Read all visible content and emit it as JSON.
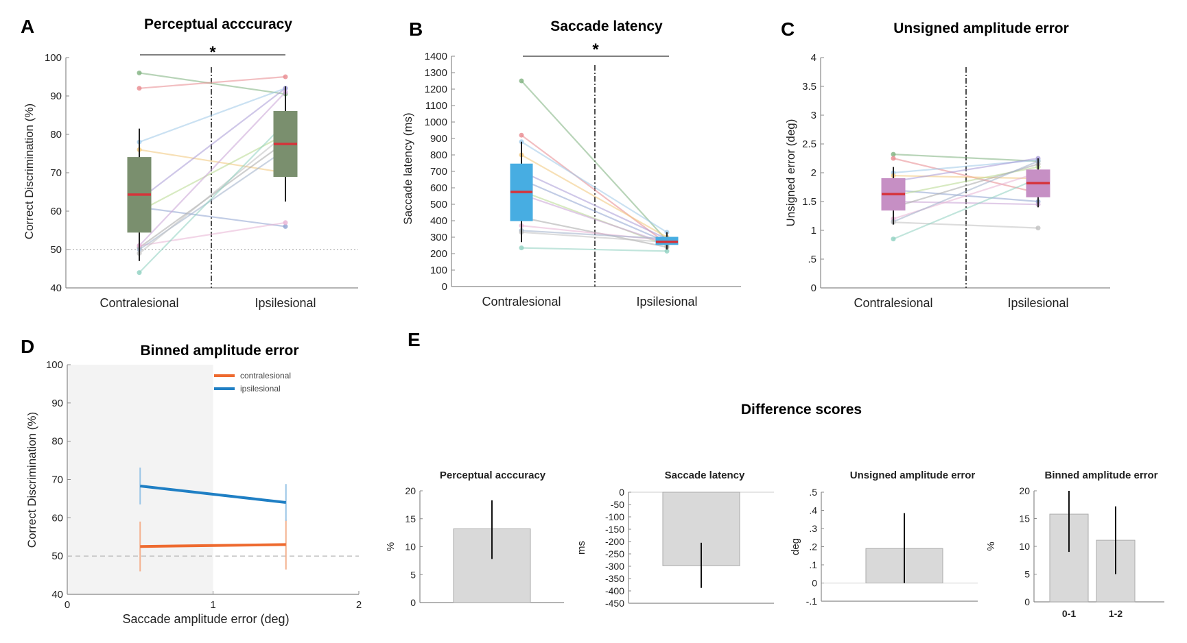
{
  "panels": {
    "A": {
      "letter": "A",
      "title": "Perceptual acccuracy",
      "ylabel": "Correct Discrimination (%)",
      "sig": "*"
    },
    "B": {
      "letter": "B",
      "title": "Saccade latency",
      "ylabel": "Saccade latency (ms)",
      "sig": "*"
    },
    "C": {
      "letter": "C",
      "title": "Unsigned amplitude error",
      "ylabel": "Unsigned error (deg)"
    },
    "D": {
      "letter": "D",
      "title": "Binned amplitude error",
      "ylabel": "Correct Discrimination (%)",
      "xlabel": "Saccade amplitude error (deg)"
    },
    "E": {
      "letter": "E",
      "title": "Difference scores"
    }
  },
  "colors": {
    "box_green": "#7a8f6e",
    "box_blue": "#47ade2",
    "box_purple": "#c68fc4",
    "median_red": "#d6333a",
    "contralesional_line": "#ee6a2f",
    "ipsilesional_line": "#1f7fc4",
    "diff_bar": "#d9d9d9",
    "subject_colors": [
      "#7fb27f",
      "#e88a8f",
      "#9fc9e8",
      "#f2c77b",
      "#a99bd6",
      "#8fa3d1",
      "#b8d98f",
      "#c9a3d6",
      "#a8a8a8",
      "#e8b3d4",
      "#9fb0c9",
      "#c0c0c0",
      "#8fd1c0"
    ]
  },
  "chart_data": [
    {
      "id": "A",
      "type": "box",
      "title": "Perceptual acccuracy",
      "ylabel": "Correct Discrimination (%)",
      "categories": [
        "Contralesional",
        "Ipsilesional"
      ],
      "ylim": [
        40,
        100
      ],
      "yticks": [
        40,
        50,
        60,
        70,
        80,
        90,
        100
      ],
      "chance_line": 50,
      "boxes": [
        {
          "category": "Contralesional",
          "q1": 54.5,
          "median": 64.3,
          "q3": 74,
          "whisker_low": 47,
          "whisker_high": 81.5
        },
        {
          "category": "Ipsilesional",
          "q1": 69,
          "median": 77.5,
          "q3": 86,
          "whisker_low": 62.5,
          "whisker_high": 92.5
        }
      ],
      "subjects": [
        [
          96,
          90.5
        ],
        [
          92,
          95
        ],
        [
          78,
          92
        ],
        [
          76,
          70
        ],
        [
          63,
          92
        ],
        [
          61,
          56
        ],
        [
          60,
          80
        ],
        [
          51,
          91
        ],
        [
          50.5,
          78
        ],
        [
          51,
          57
        ],
        [
          50,
          76
        ],
        [
          49,
          80
        ],
        [
          44,
          83
        ]
      ]
    },
    {
      "id": "B",
      "type": "box",
      "title": "Saccade latency",
      "ylabel": "Saccade latency (ms)",
      "categories": [
        "Contralesional",
        "Ipsilesional"
      ],
      "ylim": [
        0,
        1400
      ],
      "yticks": [
        0,
        100,
        200,
        300,
        400,
        500,
        600,
        700,
        800,
        900,
        1000,
        1100,
        1200,
        1300,
        1400
      ],
      "boxes": [
        {
          "category": "Contralesional",
          "q1": 400,
          "median": 575,
          "q3": 745,
          "whisker_low": 270,
          "whisker_high": 880
        },
        {
          "category": "Ipsilesional",
          "q1": 255,
          "median": 272,
          "q3": 300,
          "whisker_low": 225,
          "whisker_high": 330
        }
      ],
      "subjects": [
        [
          1250,
          280
        ],
        [
          920,
          260
        ],
        [
          880,
          330
        ],
        [
          800,
          300
        ],
        [
          700,
          290
        ],
        [
          650,
          270
        ],
        [
          580,
          250
        ],
        [
          560,
          260
        ],
        [
          420,
          240
        ],
        [
          370,
          280
        ],
        [
          340,
          290
        ],
        [
          330,
          270
        ],
        [
          235,
          215
        ]
      ]
    },
    {
      "id": "C",
      "type": "box",
      "title": "Unsigned amplitude error",
      "ylabel": "Unsigned error (deg)",
      "categories": [
        "Contralesional",
        "Ipsilesional"
      ],
      "ylim": [
        0,
        4
      ],
      "yticks": [
        0,
        0.5,
        1,
        1.5,
        2,
        2.5,
        3,
        3.5,
        4
      ],
      "ytick_labels": [
        "0",
        ".5",
        "1",
        "1.5",
        "2",
        "2.5",
        "3",
        "3.5",
        "4"
      ],
      "boxes": [
        {
          "category": "Contralesional",
          "q1": 1.35,
          "median": 1.63,
          "q3": 1.9,
          "whisker_low": 1.1,
          "whisker_high": 2.1
        },
        {
          "category": "Ipsilesional",
          "q1": 1.58,
          "median": 1.82,
          "q3": 2.05,
          "whisker_low": 1.4,
          "whisker_high": 2.25
        }
      ],
      "subjects": [
        [
          2.32,
          2.2
        ],
        [
          2.25,
          1.65
        ],
        [
          2.0,
          2.22
        ],
        [
          1.95,
          1.9
        ],
        [
          1.85,
          2.25
        ],
        [
          1.7,
          1.5
        ],
        [
          1.6,
          2.1
        ],
        [
          1.5,
          1.45
        ],
        [
          1.4,
          2.15
        ],
        [
          1.2,
          2.0
        ],
        [
          1.15,
          2.2
        ],
        [
          1.14,
          1.04
        ],
        [
          0.85,
          1.9
        ]
      ]
    },
    {
      "id": "D",
      "type": "line",
      "title": "Binned amplitude error",
      "xlabel": "Saccade amplitude error (deg)",
      "ylabel": "Correct Discrimination (%)",
      "xlim": [
        0,
        2
      ],
      "xticks": [
        0,
        1,
        2
      ],
      "ylim": [
        40,
        100
      ],
      "yticks": [
        40,
        50,
        60,
        70,
        80,
        90,
        100
      ],
      "chance_line": 50,
      "shaded_region": [
        0,
        1
      ],
      "legend_position": "top-right",
      "series": [
        {
          "name": "contralesional",
          "x": [
            0.5,
            1.5
          ],
          "y": [
            52.5,
            53
          ],
          "err": [
            6.5,
            6.5
          ]
        },
        {
          "name": "ipsilesional",
          "x": [
            0.5,
            1.5
          ],
          "y": [
            68.3,
            64
          ],
          "err": [
            4.8,
            4.8
          ]
        }
      ]
    },
    {
      "id": "E1",
      "type": "bar",
      "title": "Perceptual acccuracy",
      "ylabel": "%",
      "ylim": [
        0,
        20
      ],
      "yticks": [
        0,
        5,
        10,
        15,
        20
      ],
      "ytick_labels": [
        "0",
        "5",
        "10",
        "15",
        "20"
      ],
      "categories": [
        ""
      ],
      "values": [
        13.2
      ],
      "err_low": [
        7.8
      ],
      "err_high": [
        18.3
      ]
    },
    {
      "id": "E2",
      "type": "bar",
      "title": "Saccade latency",
      "ylabel": "ms",
      "ylim": [
        -450,
        0
      ],
      "yticks": [
        0,
        -50,
        -100,
        -150,
        -200,
        -250,
        -300,
        -350,
        -400,
        -450
      ],
      "ytick_labels": [
        "0",
        "-50",
        "-100",
        "-150",
        "-200",
        "-250",
        "-300",
        "-350",
        "-400",
        "-450"
      ],
      "categories": [
        ""
      ],
      "values": [
        -298
      ],
      "err_low": [
        -388
      ],
      "err_high": [
        -205
      ]
    },
    {
      "id": "E3",
      "type": "bar",
      "title": "Unsigned amplitude error",
      "ylabel": "deg",
      "ylim": [
        -0.1,
        0.5
      ],
      "yticks": [
        -0.1,
        0,
        0.1,
        0.2,
        0.3,
        0.4,
        0.5
      ],
      "ytick_labels": [
        "-.1",
        "0",
        ".1",
        ".2",
        ".3",
        ".4",
        ".5"
      ],
      "categories": [
        ""
      ],
      "values": [
        0.19
      ],
      "err_low": [
        0
      ],
      "err_high": [
        0.385
      ]
    },
    {
      "id": "E4",
      "type": "bar",
      "title": "Binned amplitude error",
      "ylabel": "%",
      "ylim": [
        0,
        20
      ],
      "yticks": [
        0,
        5,
        10,
        15,
        20
      ],
      "ytick_labels": [
        "0",
        "5",
        "10",
        "15",
        "20"
      ],
      "categories": [
        "0-1",
        "1-2"
      ],
      "values": [
        15.8,
        11.1
      ],
      "err_low": [
        9.0,
        5.0
      ],
      "err_high": [
        20.0,
        17.2
      ]
    }
  ]
}
